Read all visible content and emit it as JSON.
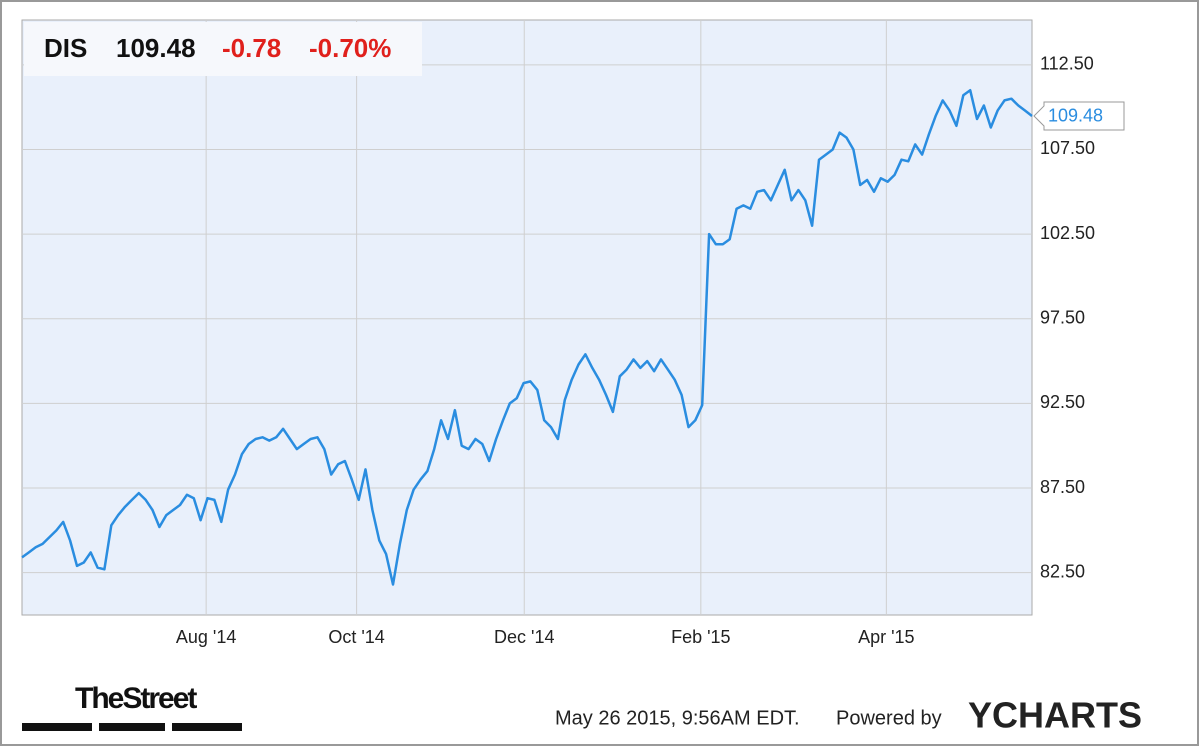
{
  "header": {
    "ticker": "DIS",
    "price": "109.48",
    "change": "-0.78",
    "change_pct": "-0.70%"
  },
  "chart_data": {
    "type": "line",
    "color": "#2a8de0",
    "grid": true,
    "values": [
      83.4,
      83.7,
      84.0,
      84.2,
      84.6,
      85.0,
      85.5,
      84.4,
      82.9,
      83.1,
      83.7,
      82.8,
      82.7,
      85.3,
      85.9,
      86.4,
      86.8,
      87.2,
      86.8,
      86.2,
      85.2,
      85.9,
      86.2,
      86.5,
      87.1,
      86.9,
      85.6,
      86.9,
      86.8,
      85.5,
      87.4,
      88.3,
      89.5,
      90.1,
      90.4,
      90.5,
      90.3,
      90.5,
      91.0,
      90.4,
      89.8,
      90.1,
      90.4,
      90.5,
      89.8,
      88.3,
      88.9,
      89.1,
      88.0,
      86.8,
      88.6,
      86.2,
      84.4,
      83.6,
      81.8,
      84.2,
      86.2,
      87.4,
      88.0,
      88.5,
      89.8,
      91.5,
      90.4,
      92.1,
      90.0,
      89.8,
      90.4,
      90.1,
      89.1,
      90.4,
      91.5,
      92.5,
      92.8,
      93.7,
      93.8,
      93.3,
      91.5,
      91.1,
      90.4,
      92.7,
      93.9,
      94.8,
      95.4,
      94.6,
      93.9,
      93.0,
      92.0,
      94.1,
      94.5,
      95.1,
      94.6,
      95.0,
      94.4,
      95.1,
      94.5,
      93.9,
      93.0,
      91.1,
      91.5,
      92.4,
      102.5,
      101.9,
      101.9,
      102.2,
      104.0,
      104.2,
      104.0,
      105.0,
      105.1,
      104.5,
      105.4,
      106.3,
      104.5,
      105.1,
      104.5,
      103.0,
      106.9,
      107.2,
      107.5,
      108.5,
      108.2,
      107.5,
      105.4,
      105.7,
      105.0,
      105.8,
      105.6,
      106.0,
      106.9,
      106.8,
      107.8,
      107.2,
      108.4,
      109.5,
      110.4,
      109.8,
      108.9,
      110.7,
      111.0,
      109.3,
      110.1,
      108.8,
      109.8,
      110.4,
      110.5,
      110.1,
      109.8,
      109.48
    ],
    "xlim": [
      0,
      147
    ],
    "xticks": [
      {
        "value": 26.8,
        "label": "Aug '14"
      },
      {
        "value": 48.7,
        "label": "Oct '14"
      },
      {
        "value": 73.1,
        "label": "Dec '14"
      },
      {
        "value": 98.8,
        "label": "Feb '15"
      },
      {
        "value": 125.8,
        "label": "Apr '15"
      }
    ],
    "ylim": [
      80,
      115.15
    ],
    "yticks": [
      {
        "value": 82.5,
        "label": "82.50"
      },
      {
        "value": 87.5,
        "label": "87.50"
      },
      {
        "value": 92.5,
        "label": "92.50"
      },
      {
        "value": 97.5,
        "label": "97.50"
      },
      {
        "value": 102.5,
        "label": "102.50"
      },
      {
        "value": 107.5,
        "label": "107.50"
      },
      {
        "value": 112.5,
        "label": "112.50"
      }
    ]
  },
  "footer": {
    "brand": "TheStreet",
    "timestamp": "May 26 2015, 9:56AM EDT.",
    "powered_by": "Powered by",
    "provider": "YCHARTS"
  }
}
